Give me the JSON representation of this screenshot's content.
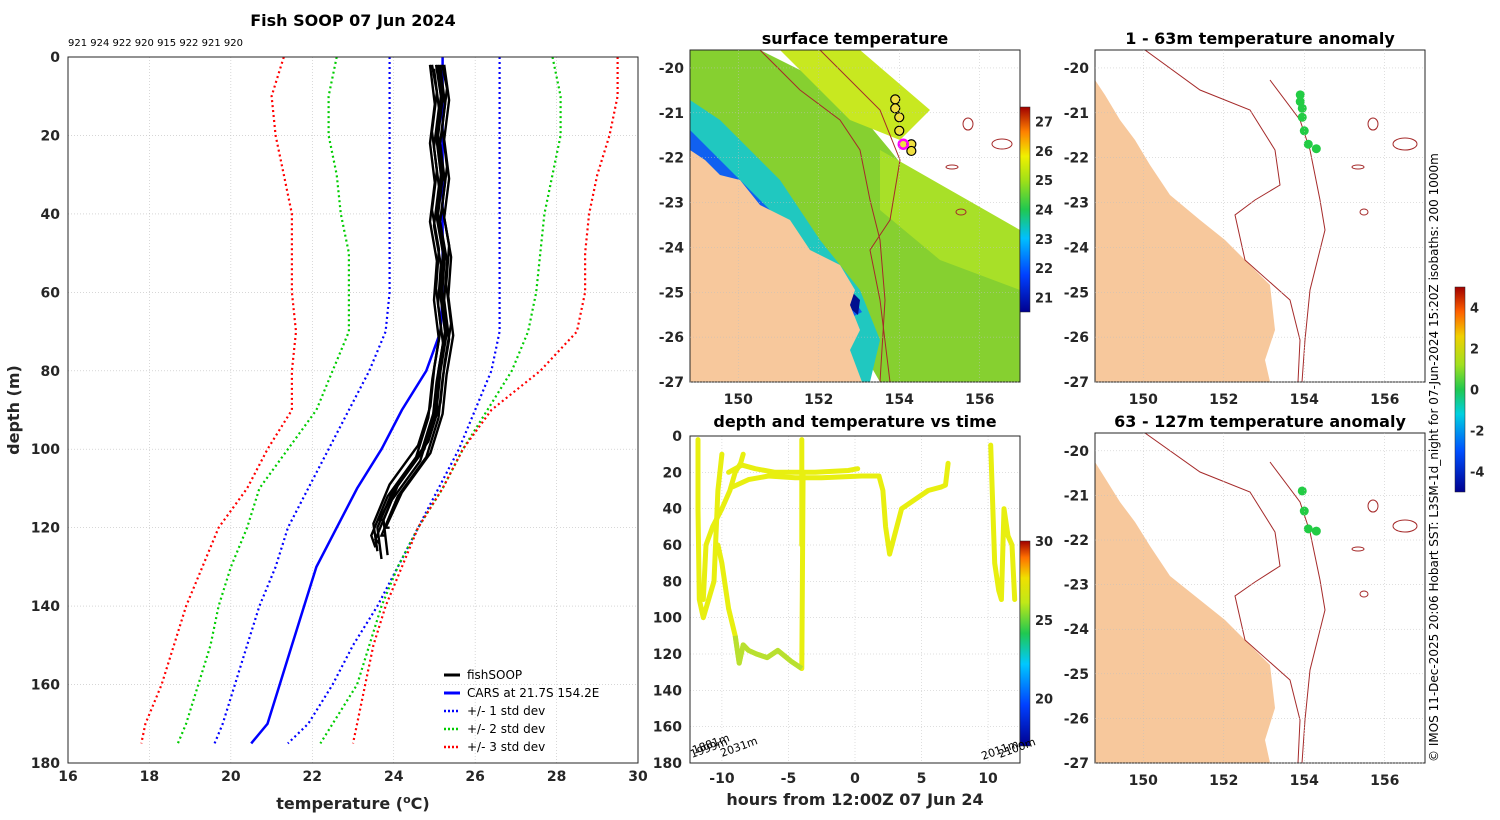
{
  "colors": {
    "profile": "#000000",
    "cars": "#0000ff",
    "std1": "#0000ff",
    "std2": "#00cc00",
    "std3": "#ff0000",
    "land": "#f7c89c",
    "isobath": "#a52a2a",
    "anomaly_dot": "#22cc44",
    "track": "#e8ef10"
  },
  "profile_panel": {
    "title": "Fish SOOP 07 Jun 2024",
    "header_ids": "921 924 922 920 915 922 921 920",
    "xlabel": "temperature (",
    "xlabel_sup": "o",
    "xlabel_end": "C)",
    "ylabel": "depth (m)",
    "xticks": [
      "16",
      "18",
      "20",
      "22",
      "24",
      "26",
      "28",
      "30"
    ],
    "yticks": [
      "0",
      "20",
      "40",
      "60",
      "80",
      "100",
      "120",
      "140",
      "160",
      "180"
    ],
    "legend": [
      "fishSOOP",
      "CARS at 21.7S 154.2E",
      "+/- 1 std dev",
      "+/- 2 std dev",
      "+/- 3 std dev"
    ]
  },
  "sst_panel": {
    "title": "surface temperature",
    "xticks": [
      "150",
      "152",
      "154",
      "156"
    ],
    "yticks": [
      "-20",
      "-21",
      "-22",
      "-23",
      "-24",
      "-25",
      "-26",
      "-27"
    ],
    "cbar_ticks": [
      "27",
      "26",
      "25",
      "24",
      "23",
      "22",
      "21"
    ]
  },
  "time_panel": {
    "title": "depth and temperature vs time",
    "xlabel": "hours from 12:00Z 07 Jun 24",
    "xticks": [
      "-10",
      "-5",
      "0",
      "5",
      "10"
    ],
    "yticks": [
      "0",
      "20",
      "40",
      "60",
      "80",
      "100",
      "120",
      "140",
      "160",
      "180"
    ],
    "cbar_ticks": [
      "30",
      "25",
      "20"
    ],
    "bottom_labels_left": [
      "1999m",
      "1881m",
      "2031m"
    ],
    "bottom_labels_right": [
      "2011m",
      "2100m"
    ]
  },
  "anom1_panel": {
    "title": "1 - 63m temperature anomaly",
    "xticks": [
      "150",
      "152",
      "154",
      "156"
    ],
    "yticks": [
      "-20",
      "-21",
      "-22",
      "-23",
      "-24",
      "-25",
      "-26",
      "-27"
    ]
  },
  "anom2_panel": {
    "title": "63 - 127m temperature anomaly",
    "xticks": [
      "150",
      "152",
      "154",
      "156"
    ],
    "yticks": [
      "-20",
      "-21",
      "-22",
      "-23",
      "-24",
      "-25",
      "-26",
      "-27"
    ]
  },
  "anom_cbar": {
    "ticks": [
      "4",
      "2",
      "0",
      "-2",
      "-4"
    ]
  },
  "credit": "© IMOS 11-Dec-2025 20:06 Hobart SST: L3SM-1d_night for 07-Jun-2024 15:20Z isobaths: 200  1000m",
  "chart_data": [
    {
      "type": "line",
      "title": "Fish SOOP 07 Jun 2024",
      "xlabel": "temperature (oC)",
      "ylabel": "depth (m)",
      "xlim": [
        16,
        30
      ],
      "ylim": [
        180,
        0
      ],
      "depth": [
        0,
        10,
        20,
        30,
        40,
        50,
        60,
        70,
        80,
        90,
        100,
        110,
        120,
        130,
        140,
        150,
        160,
        170,
        175
      ],
      "series": [
        {
          "name": "CARS at 21.7S 154.2E",
          "temperature": [
            25.2,
            25.2,
            25.2,
            25.2,
            25.2,
            25.2,
            25.2,
            25.15,
            24.8,
            24.2,
            23.7,
            23.1,
            22.6,
            22.1,
            21.8,
            21.5,
            21.2,
            20.9,
            20.5
          ]
        },
        {
          "name": "+/- 1 std dev (upper)",
          "temperature": [
            26.6,
            26.6,
            26.6,
            26.6,
            26.6,
            26.6,
            26.6,
            26.6,
            26.4,
            26.0,
            25.6,
            25.1,
            24.6,
            24.1,
            23.6,
            23.0,
            22.5,
            21.9,
            21.4
          ]
        },
        {
          "name": "+/- 1 std dev (lower)",
          "temperature": [
            23.9,
            23.9,
            23.9,
            23.9,
            23.9,
            23.9,
            23.9,
            23.8,
            23.4,
            22.9,
            22.4,
            21.9,
            21.4,
            21.1,
            20.7,
            20.4,
            20.1,
            19.8,
            19.6
          ]
        },
        {
          "name": "+/- 2 std dev (upper)",
          "temperature": [
            27.9,
            28.1,
            28.1,
            27.9,
            27.7,
            27.6,
            27.5,
            27.3,
            26.9,
            26.3,
            25.7,
            25.2,
            24.6,
            24.1,
            23.7,
            23.4,
            23.1,
            22.5,
            22.2
          ]
        },
        {
          "name": "+/- 2 std dev (lower)",
          "temperature": [
            22.6,
            22.4,
            22.4,
            22.6,
            22.7,
            22.9,
            22.9,
            22.9,
            22.5,
            22.1,
            21.4,
            20.7,
            20.4,
            20.0,
            19.7,
            19.5,
            19.2,
            18.9,
            18.7
          ]
        },
        {
          "name": "+/- 3 std dev (upper)",
          "temperature": [
            29.5,
            29.5,
            29.3,
            29.0,
            28.8,
            28.7,
            28.7,
            28.5,
            27.6,
            26.4,
            25.7,
            25.2,
            24.6,
            24.2,
            23.8,
            23.5,
            23.3,
            23.1,
            23.0
          ]
        },
        {
          "name": "+/- 3 std dev (lower)",
          "temperature": [
            21.3,
            21.0,
            21.1,
            21.3,
            21.5,
            21.5,
            21.5,
            21.6,
            21.5,
            21.5,
            20.9,
            20.4,
            19.7,
            19.3,
            18.9,
            18.6,
            18.3,
            17.9,
            17.8
          ]
        },
        {
          "name": "fishSOOP",
          "temperature": [
            25.1,
            25.1,
            25.1,
            25.1,
            25.1,
            25.15,
            25.2,
            25.2,
            25.1,
            25.0,
            24.7,
            24.0,
            23.6,
            23.7
          ]
        }
      ]
    },
    {
      "type": "heatmap",
      "title": "surface temperature",
      "xlim": [
        148.8,
        157
      ],
      "ylim": [
        -27,
        -19.6
      ],
      "colorbar": {
        "min": 20.5,
        "max": 27.5,
        "ticks": [
          21,
          22,
          23,
          24,
          25,
          26,
          27
        ]
      },
      "stations": [
        {
          "lon": 153.9,
          "lat": -20.7
        },
        {
          "lon": 153.9,
          "lat": -20.9
        },
        {
          "lon": 154.0,
          "lat": -21.1
        },
        {
          "lon": 154.0,
          "lat": -21.4
        },
        {
          "lon": 154.1,
          "lat": -21.7
        },
        {
          "lon": 154.3,
          "lat": -21.7
        },
        {
          "lon": 154.3,
          "lat": -21.85
        }
      ]
    },
    {
      "type": "line",
      "title": "depth and temperature vs time",
      "xlabel": "hours from 12:00Z 07 Jun 24",
      "xlim": [
        -12.4,
        12.4
      ],
      "ylim": [
        180,
        0
      ],
      "colorbar": {
        "min": 17,
        "max": 30,
        "ticks": [
          20,
          25,
          30
        ]
      },
      "series": [
        {
          "name": "dive 1",
          "x": [
            -11.8,
            -11.8,
            -11.7,
            -11.4,
            -11.0,
            -10.6,
            -10.3,
            -10.0
          ],
          "y": [
            2,
            40,
            90,
            100,
            90,
            80,
            30,
            10
          ]
        },
        {
          "name": "dive 2",
          "x": [
            -11.4,
            -11.2,
            -10.7,
            -10.0,
            -9.4,
            -9.0,
            -8.6,
            -8.4
          ],
          "y": [
            90,
            60,
            50,
            40,
            30,
            20,
            15,
            10
          ]
        },
        {
          "name": "dive 3",
          "x": [
            -10.3,
            -10.0,
            -9.5,
            -9.0,
            -8.7,
            -8.4,
            -8.0,
            -7.4,
            -6.6,
            -5.8,
            -4.8,
            -4.0,
            -3.9
          ],
          "y": [
            60,
            70,
            95,
            110,
            125,
            115,
            118,
            120,
            122,
            118,
            124,
            128,
            20
          ]
        },
        {
          "name": "dive 4",
          "x": [
            -9.5,
            -8.5,
            -7.5,
            -6.0,
            -4.5,
            -3.0,
            -0.5,
            0.2
          ],
          "y": [
            20,
            16,
            18,
            20,
            20,
            20,
            19,
            18
          ]
        },
        {
          "name": "dive 5",
          "x": [
            -9.2,
            -8.0,
            -6.5,
            -4.5,
            -2.5,
            0.5,
            1.8,
            2.1,
            2.3,
            2.6,
            3.5,
            4.5,
            5.5,
            6.5,
            6.8,
            7.0
          ],
          "y": [
            28,
            24,
            22,
            23,
            23,
            22,
            22,
            30,
            50,
            65,
            40,
            35,
            30,
            28,
            27,
            15
          ]
        },
        {
          "name": "dive 6",
          "x": [
            -4.0,
            -4.0
          ],
          "y": [
            2,
            60
          ]
        },
        {
          "name": "dive 7",
          "x": [
            10.2,
            10.5,
            10.8,
            11.0,
            11.2,
            11.5,
            11.8,
            12.0
          ],
          "y": [
            5,
            70,
            85,
            90,
            40,
            55,
            60,
            90
          ]
        }
      ]
    },
    {
      "type": "scatter",
      "title": "1 - 63m temperature anomaly",
      "xlim": [
        148.8,
        157
      ],
      "ylim": [
        -27,
        -19.6
      ],
      "points": [
        {
          "lon": 153.9,
          "lat": -20.6,
          "anomaly": -0.4
        },
        {
          "lon": 153.9,
          "lat": -20.75,
          "anomaly": -0.4
        },
        {
          "lon": 153.95,
          "lat": -20.9,
          "anomaly": -0.4
        },
        {
          "lon": 153.95,
          "lat": -21.1,
          "anomaly": -0.4
        },
        {
          "lon": 154.0,
          "lat": -21.4,
          "anomaly": -0.3
        },
        {
          "lon": 154.1,
          "lat": -21.7,
          "anomaly": -0.3
        },
        {
          "lon": 154.3,
          "lat": -21.8,
          "anomaly": -0.3
        }
      ]
    },
    {
      "type": "scatter",
      "title": "63 - 127m temperature anomaly",
      "xlim": [
        148.8,
        157
      ],
      "ylim": [
        -27,
        -19.6
      ],
      "points": [
        {
          "lon": 153.95,
          "lat": -20.9,
          "anomaly": -0.3
        },
        {
          "lon": 154.0,
          "lat": -21.35,
          "anomaly": -0.3
        },
        {
          "lon": 154.1,
          "lat": -21.75,
          "anomaly": -0.4
        },
        {
          "lon": 154.3,
          "lat": -21.8,
          "anomaly": -0.4
        }
      ]
    }
  ]
}
